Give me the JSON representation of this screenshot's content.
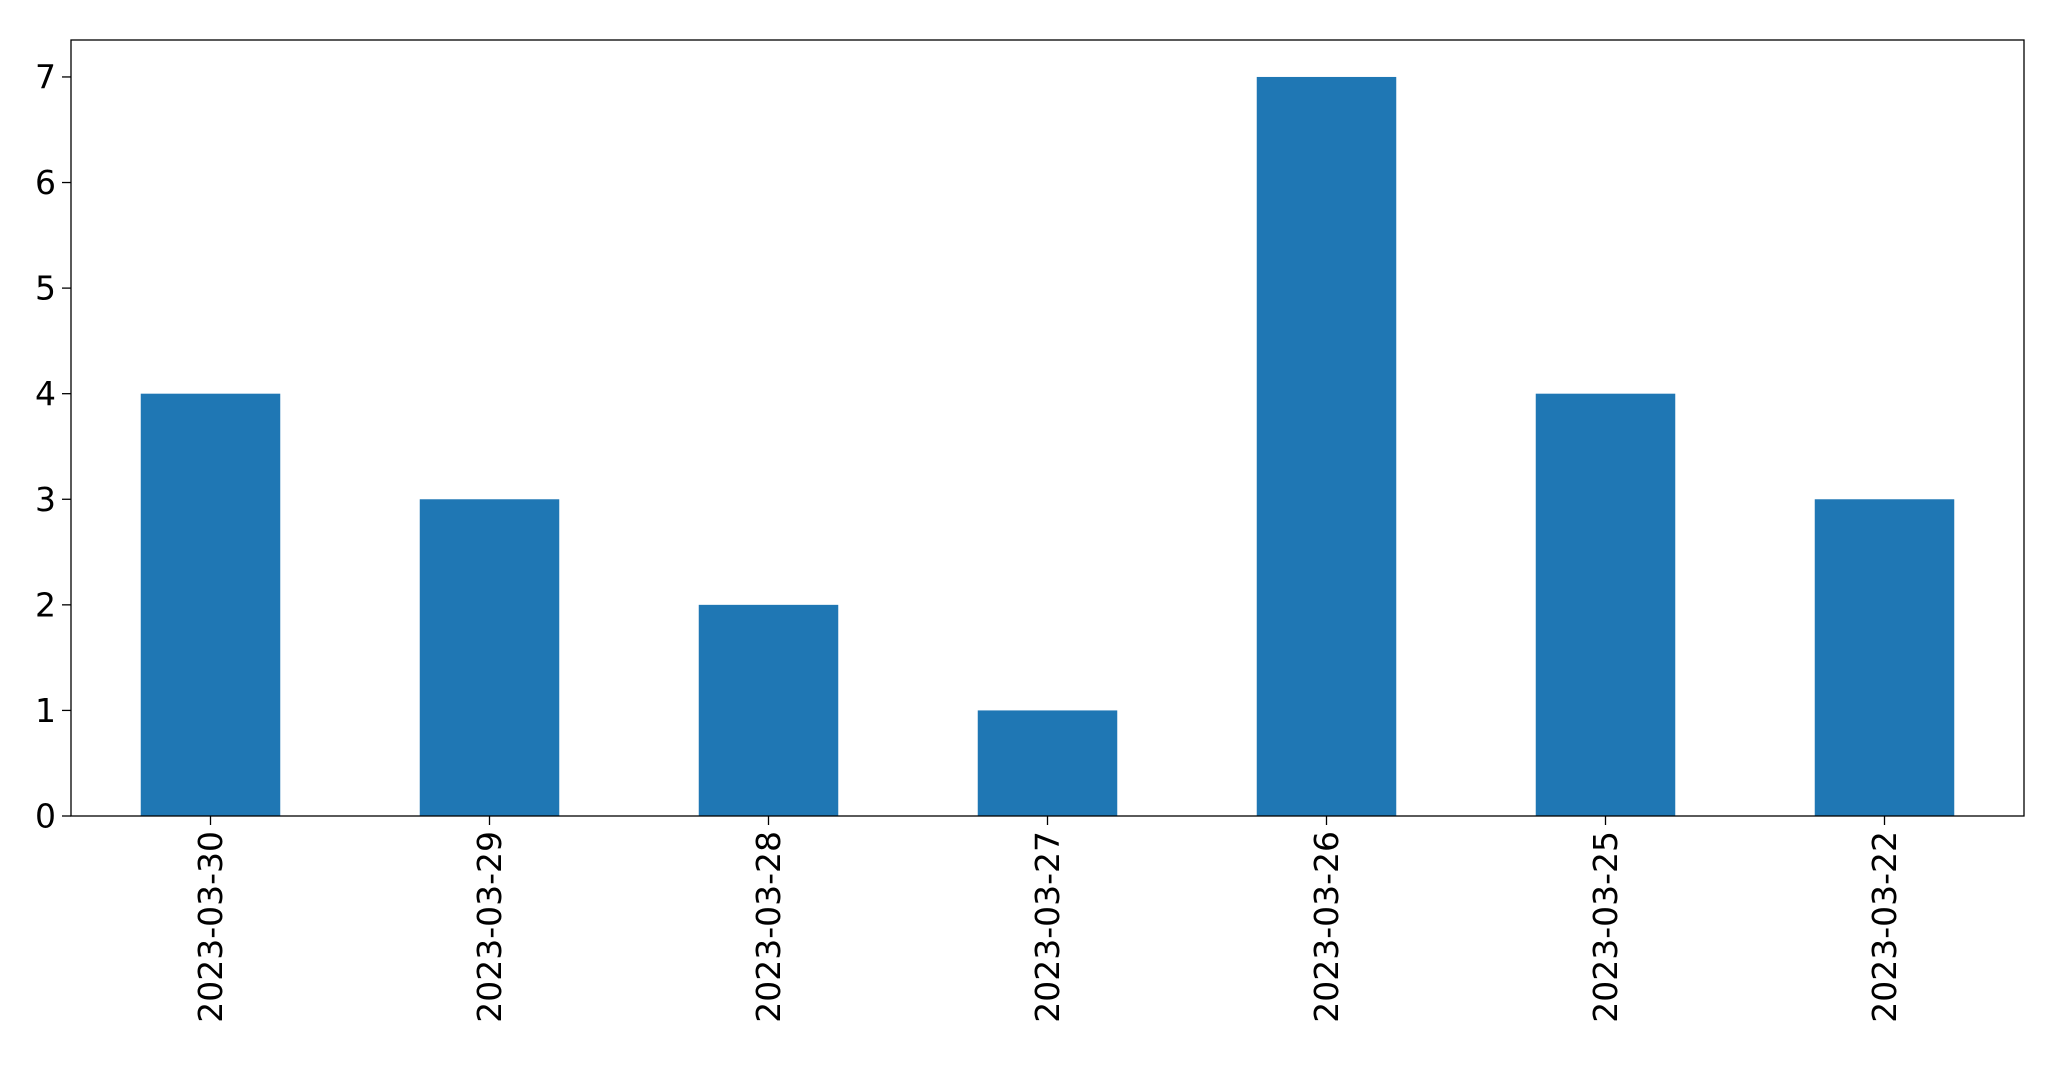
{
  "chart_data": {
    "type": "bar",
    "title": "",
    "xlabel": "",
    "ylabel": "",
    "categories": [
      "2023-03-30",
      "2023-03-29",
      "2023-03-28",
      "2023-03-27",
      "2023-03-26",
      "2023-03-25",
      "2023-03-22"
    ],
    "values": [
      4,
      3,
      2,
      1,
      7,
      4,
      3
    ],
    "ylim": [
      0,
      7.35
    ],
    "yticks": [
      0,
      1,
      2,
      3,
      4,
      5,
      6,
      7
    ],
    "x_tick_rotation": "vertical",
    "grid": false,
    "legend": "none",
    "bar_color": "#1f77b4"
  }
}
